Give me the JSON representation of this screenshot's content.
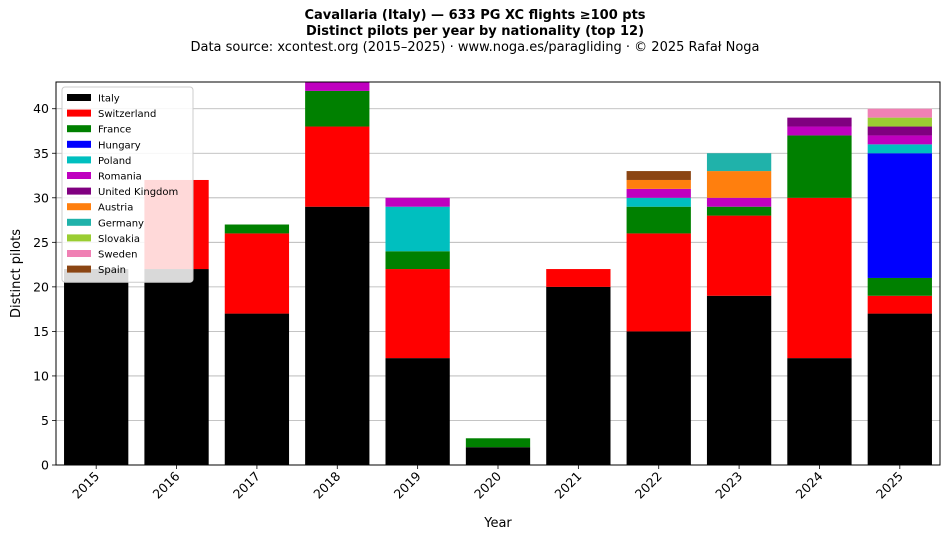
{
  "chart_data": {
    "type": "bar",
    "stacked": true,
    "title": "Cavallaria (Italy)  —  633 PG XC flights ≥100 pts",
    "subtitle": "Distinct pilots per year by nationality (top 12)",
    "source": "Data source: xcontest.org (2015–2025)  ·  www.noga.es/paragliding  ·  © 2025 Rafał Noga",
    "xlabel": "Year",
    "ylabel": "Distinct pilots",
    "ylim": [
      0,
      43
    ],
    "yticks": [
      0,
      5,
      10,
      15,
      20,
      25,
      30,
      35,
      40
    ],
    "grid": "horizontal",
    "legend_position": "top-left",
    "categories": [
      "2015",
      "2016",
      "2017",
      "2018",
      "2019",
      "2020",
      "2021",
      "2022",
      "2023",
      "2024",
      "2025"
    ],
    "series": [
      {
        "name": "Italy",
        "color": "#000000",
        "values": [
          22,
          22,
          17,
          29,
          12,
          2,
          20,
          15,
          19,
          12,
          17
        ]
      },
      {
        "name": "Switzerland",
        "color": "#ff0000",
        "values": [
          0,
          10,
          9,
          9,
          10,
          0,
          2,
          11,
          9,
          18,
          2
        ]
      },
      {
        "name": "France",
        "color": "#008000",
        "values": [
          0,
          0,
          1,
          4,
          2,
          1,
          0,
          3,
          1,
          7,
          2
        ]
      },
      {
        "name": "Hungary",
        "color": "#0000ff",
        "values": [
          0,
          0,
          0,
          0,
          0,
          0,
          0,
          0,
          0,
          0,
          14
        ]
      },
      {
        "name": "Poland",
        "color": "#00bfbf",
        "values": [
          0,
          0,
          0,
          0,
          5,
          0,
          0,
          1,
          0,
          0,
          1
        ]
      },
      {
        "name": "Romania",
        "color": "#bf00bf",
        "values": [
          0,
          0,
          0,
          1,
          1,
          0,
          0,
          1,
          1,
          1,
          1
        ]
      },
      {
        "name": "United Kingdom",
        "color": "#800080",
        "values": [
          0,
          0,
          0,
          0,
          0,
          0,
          0,
          0,
          0,
          1,
          1
        ]
      },
      {
        "name": "Austria",
        "color": "#ff7f0e",
        "values": [
          0,
          0,
          0,
          0,
          0,
          0,
          0,
          1,
          3,
          0,
          0
        ]
      },
      {
        "name": "Germany",
        "color": "#20b2aa",
        "values": [
          0,
          0,
          0,
          0,
          0,
          0,
          0,
          0,
          2,
          0,
          0
        ]
      },
      {
        "name": "Slovakia",
        "color": "#9acd32",
        "values": [
          0,
          0,
          0,
          0,
          0,
          0,
          0,
          0,
          0,
          0,
          1
        ]
      },
      {
        "name": "Sweden",
        "color": "#f080b4",
        "values": [
          0,
          0,
          0,
          0,
          0,
          0,
          0,
          0,
          0,
          0,
          1
        ]
      },
      {
        "name": "Spain",
        "color": "#8b4513",
        "values": [
          0,
          0,
          0,
          0,
          0,
          0,
          0,
          1,
          0,
          0,
          0
        ]
      }
    ]
  }
}
